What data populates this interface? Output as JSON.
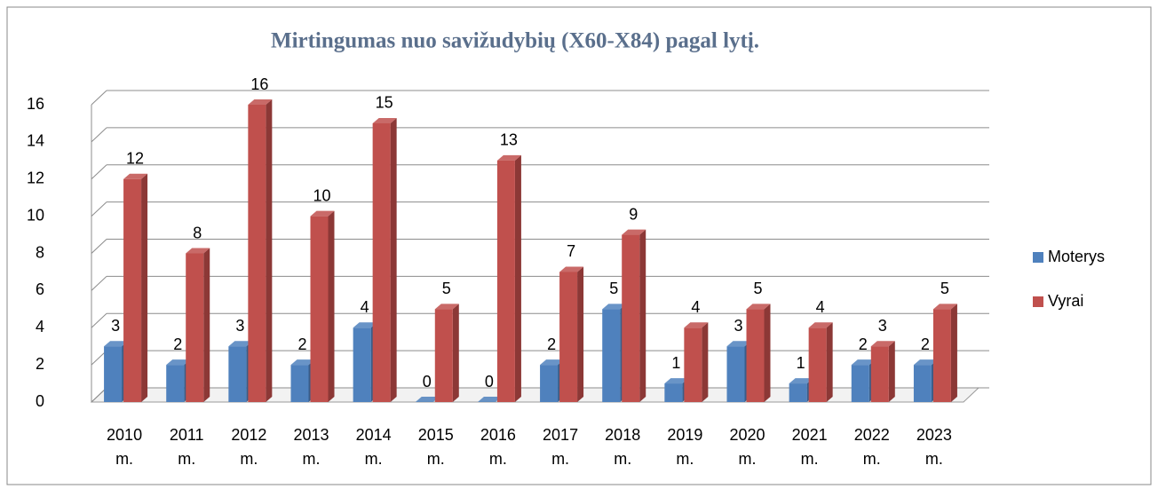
{
  "chart_data": {
    "type": "bar3d",
    "title": "Mirtingumas nuo savižudybių (X60-X84) pagal lytį.",
    "categories": [
      "2010 m.",
      "2011 m.",
      "2012 m.",
      "2013 m.",
      "2014 m.",
      "2015 m.",
      "2016 m.",
      "2017 m.",
      "2018 m.",
      "2019 m.",
      "2020 m.",
      "2021 m.",
      "2022 m.",
      "2023 m."
    ],
    "series": [
      {
        "name": "Moterys",
        "color": "#4f81bd",
        "values": [
          3,
          2,
          3,
          2,
          4,
          0,
          0,
          2,
          5,
          1,
          3,
          1,
          2,
          2
        ]
      },
      {
        "name": "Vyrai",
        "color": "#c0504d",
        "values": [
          12,
          8,
          16,
          10,
          15,
          5,
          13,
          7,
          9,
          4,
          5,
          4,
          3,
          5
        ]
      }
    ],
    "ylim": [
      0,
      16
    ],
    "yticks": [
      0,
      2,
      4,
      6,
      8,
      10,
      12,
      14,
      16
    ],
    "grid": true,
    "legend": "right"
  }
}
